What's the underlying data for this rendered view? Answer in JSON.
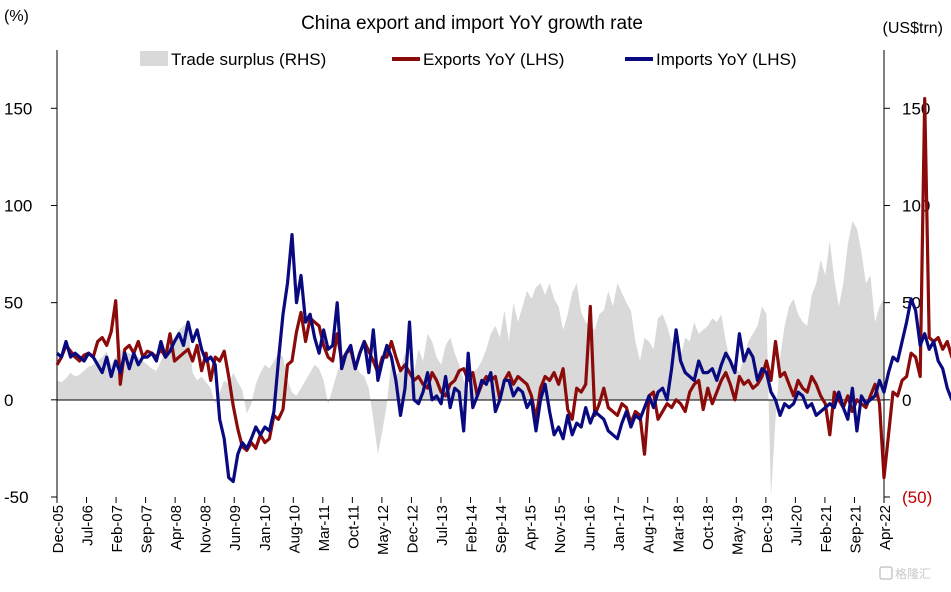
{
  "chart_data": {
    "type": "line",
    "title": "China export and import YoY growth rate",
    "left_unit": "(%)",
    "right_unit": "(US$trn)",
    "ylim": [
      -50,
      180
    ],
    "y_ticks": [
      -50,
      0,
      50,
      100,
      150
    ],
    "right_ticks": [
      {
        "value": -50,
        "label": "(50)",
        "color": "#c00000"
      },
      {
        "value": 0,
        "label": "0"
      },
      {
        "value": 50,
        "label": "50"
      },
      {
        "value": 100,
        "label": "100"
      },
      {
        "value": 150,
        "label": "150"
      }
    ],
    "x_ticks": [
      "Dec-05",
      "Jul-06",
      "Feb-07",
      "Sep-07",
      "Apr-08",
      "Nov-08",
      "Jun-09",
      "Jan-10",
      "Aug-10",
      "Mar-11",
      "Oct-11",
      "May-12",
      "Dec-12",
      "Jul-13",
      "Feb-14",
      "Sep-14",
      "Apr-15",
      "Nov-15",
      "Jun-16",
      "Jan-17",
      "Aug-17",
      "Mar-18",
      "Oct-18",
      "May-19",
      "Dec-19",
      "Jul-20",
      "Feb-21",
      "Sep-21",
      "Apr-22"
    ],
    "legend": [
      {
        "name": "Trade surplus (RHS)",
        "type": "area",
        "color": "#d9d9d9"
      },
      {
        "name": "Exports YoY (LHS)",
        "type": "line",
        "color": "#8b0a0a"
      },
      {
        "name": "Imports YoY (LHS)",
        "type": "line",
        "color": "#0a0a80"
      }
    ],
    "series": [
      {
        "name": "Trade surplus (RHS)",
        "type": "area",
        "color": "#d9d9d9",
        "values": [
          10,
          9,
          11,
          14,
          12,
          13,
          15,
          17,
          18,
          20,
          22,
          25,
          18,
          22,
          26,
          25,
          24,
          23,
          22,
          20,
          18,
          16,
          15,
          20,
          25,
          28,
          32,
          36,
          38,
          40,
          14,
          10,
          12,
          9,
          6,
          -2,
          4,
          10,
          8,
          14,
          9,
          5,
          -7,
          -2,
          8,
          14,
          18,
          16,
          20,
          24,
          22,
          10,
          4,
          2,
          6,
          10,
          14,
          18,
          16,
          10,
          -2,
          6,
          14,
          20,
          22,
          28,
          18,
          14,
          12,
          6,
          -10,
          -28,
          -16,
          -2,
          20,
          12,
          16,
          24,
          16,
          14,
          26,
          20,
          34,
          30,
          22,
          18,
          28,
          32,
          24,
          18,
          10,
          4,
          14,
          16,
          20,
          26,
          34,
          38,
          32,
          46,
          30,
          50,
          40,
          48,
          56,
          52,
          58,
          60,
          54,
          60,
          52,
          48,
          36,
          44,
          55,
          60,
          45,
          40,
          38,
          36,
          44,
          46,
          56,
          48,
          60,
          55,
          50,
          46,
          30,
          20,
          32,
          30,
          26,
          42,
          44,
          38,
          30,
          28,
          22,
          32,
          30,
          40,
          34,
          36,
          38,
          42,
          40,
          44,
          30,
          20,
          18,
          14,
          22,
          30,
          34,
          38,
          48,
          44,
          -50,
          -10,
          22,
          38,
          48,
          52,
          44,
          40,
          38,
          54,
          60,
          72,
          64,
          82,
          62,
          48,
          60,
          80,
          92,
          88,
          76,
          60,
          64,
          40,
          48,
          52
        ]
      },
      {
        "name": "Exports YoY (LHS)",
        "type": "line",
        "color": "#8b0a0a",
        "values": [
          18,
          22,
          28,
          25,
          22,
          20,
          23,
          24,
          22,
          30,
          32,
          28,
          35,
          51,
          8,
          26,
          28,
          24,
          30,
          22,
          25,
          24,
          22,
          26,
          22,
          34,
          20,
          22,
          24,
          26,
          20,
          28,
          15,
          24,
          10,
          22,
          20,
          25,
          12,
          -3,
          -15,
          -24,
          -26,
          -22,
          -25,
          -18,
          -22,
          -20,
          -8,
          -10,
          -5,
          18,
          20,
          35,
          45,
          30,
          42,
          40,
          38,
          28,
          22,
          20,
          34,
          20,
          24,
          26,
          16,
          24,
          30,
          25,
          20,
          14,
          22,
          22,
          30,
          22,
          15,
          18,
          14,
          10,
          12,
          8,
          6,
          14,
          10,
          4,
          2,
          8,
          10,
          15,
          16,
          10,
          14,
          2,
          8,
          12,
          10,
          12,
          0,
          10,
          14,
          8,
          12,
          10,
          8,
          2,
          -10,
          6,
          12,
          10,
          14,
          8,
          16,
          -5,
          -10,
          6,
          4,
          8,
          48,
          -8,
          -2,
          6,
          -4,
          -6,
          -8,
          -2,
          -4,
          -12,
          -6,
          -8,
          -28,
          2,
          4,
          -10,
          -6,
          -2,
          -4,
          0,
          -2,
          -6,
          4,
          8,
          10,
          -5,
          6,
          -2,
          4,
          10,
          14,
          8,
          0,
          12,
          8,
          10,
          6,
          8,
          12,
          20,
          10,
          30,
          12,
          14,
          8,
          2,
          10,
          6,
          4,
          12,
          8,
          2,
          -2,
          -18,
          4,
          0,
          -4,
          2,
          -6,
          0,
          -2,
          -4,
          2,
          8,
          -2,
          -40,
          -18,
          4,
          2,
          10,
          12,
          24,
          22,
          12,
          155,
          32,
          30,
          32,
          26,
          30,
          22,
          24,
          18,
          20,
          28,
          26,
          24,
          16,
          4
        ]
      },
      {
        "name": "Imports YoY (LHS)",
        "type": "line",
        "color": "#0a0a80",
        "values": [
          24,
          22,
          30,
          22,
          24,
          22,
          20,
          24,
          22,
          18,
          14,
          22,
          12,
          20,
          14,
          24,
          16,
          24,
          18,
          22,
          22,
          24,
          20,
          30,
          22,
          25,
          30,
          34,
          28,
          40,
          30,
          36,
          26,
          20,
          22,
          18,
          -10,
          -20,
          -40,
          -42,
          -28,
          -22,
          -25,
          -20,
          -14,
          -18,
          -14,
          -16,
          -6,
          20,
          44,
          60,
          85,
          50,
          64,
          40,
          44,
          32,
          24,
          36,
          26,
          28,
          50,
          16,
          24,
          28,
          16,
          24,
          30,
          14,
          36,
          10,
          20,
          28,
          22,
          10,
          -8,
          6,
          40,
          0,
          -2,
          4,
          14,
          0,
          2,
          -2,
          12,
          -4,
          6,
          4,
          -16,
          24,
          -4,
          2,
          10,
          8,
          14,
          -6,
          0,
          10,
          10,
          2,
          6,
          4,
          -4,
          0,
          -16,
          0,
          8,
          -6,
          -18,
          -14,
          -20,
          -8,
          -18,
          -12,
          -14,
          -4,
          -12,
          -6,
          -8,
          -10,
          -16,
          -18,
          -20,
          -12,
          -6,
          -14,
          -8,
          -10,
          -4,
          2,
          -4,
          4,
          6,
          0,
          16,
          36,
          20,
          14,
          12,
          10,
          20,
          14,
          14,
          16,
          10,
          18,
          24,
          20,
          14,
          34,
          20,
          26,
          22,
          10,
          16,
          14,
          4,
          0,
          -8,
          -2,
          -4,
          -2,
          4,
          2,
          -4,
          -2,
          -8,
          -6,
          -4,
          -2,
          -4,
          4,
          -4,
          -10,
          6,
          -16,
          2,
          -2,
          0,
          2,
          10,
          4,
          14,
          22,
          20,
          30,
          40,
          52,
          46,
          28,
          34,
          26,
          30,
          20,
          16,
          6,
          0,
          0
        ]
      }
    ],
    "watermark": "格隆汇"
  }
}
